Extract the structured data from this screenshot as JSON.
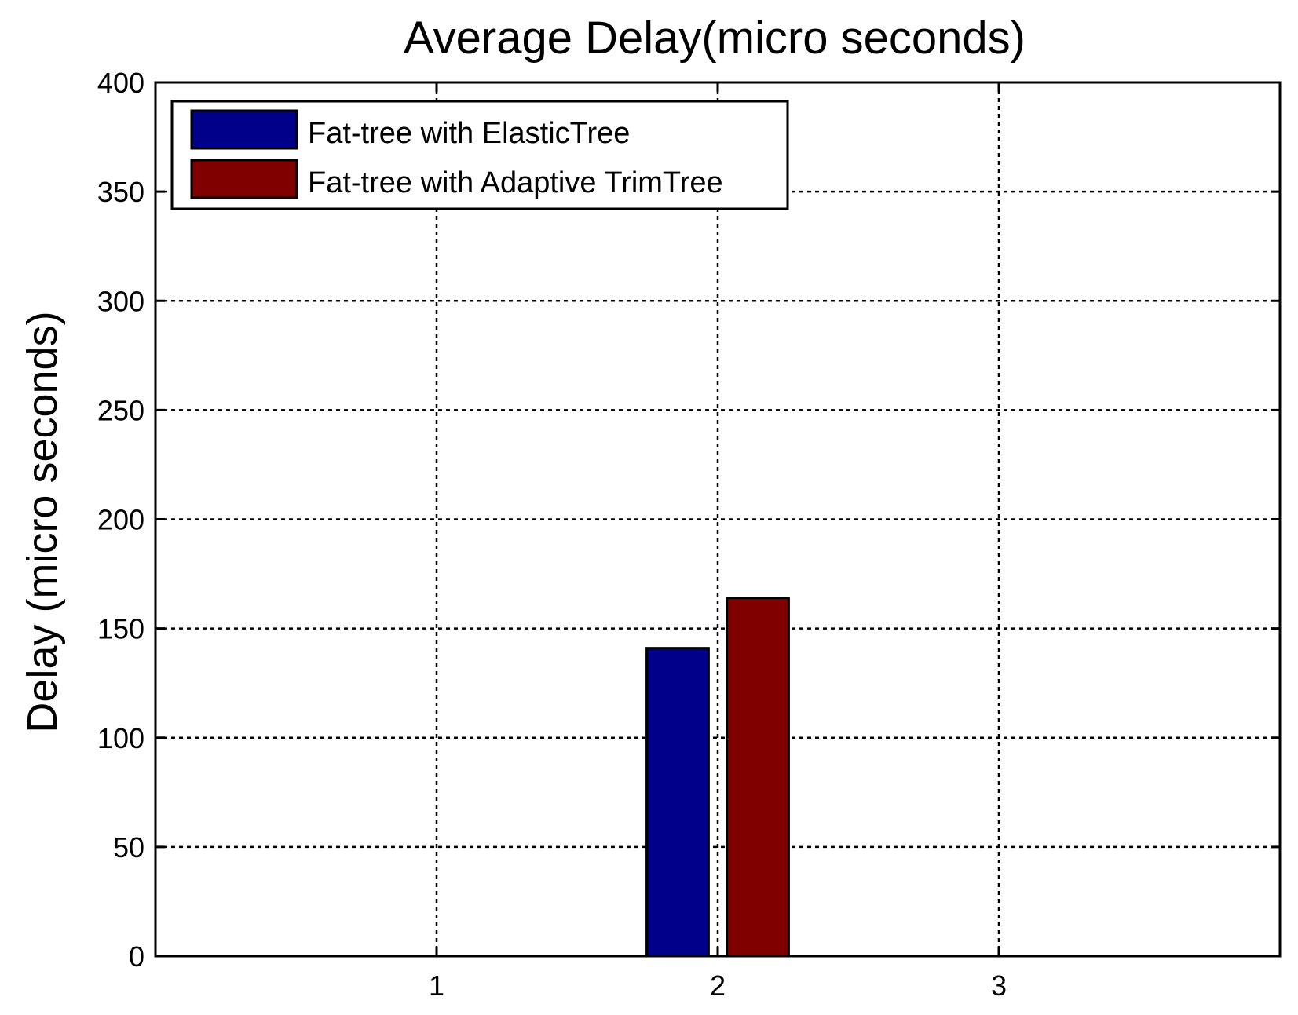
{
  "chart_data": {
    "type": "bar",
    "title": "Average Delay(micro seconds)",
    "xlabel": "",
    "ylabel": "Delay (micro seconds)",
    "categories": [
      "1",
      "2",
      "3"
    ],
    "x_ticks": [
      "1",
      "2",
      "3"
    ],
    "y_ticks": [
      "0",
      "50",
      "100",
      "150",
      "200",
      "250",
      "300",
      "350",
      "400"
    ],
    "xlim": [
      0,
      4
    ],
    "ylim": [
      0,
      400
    ],
    "grid": true,
    "legend_position": "top-left",
    "series": [
      {
        "name": "Fat-tree with ElasticTree",
        "color": "#00008b",
        "values": [
          0,
          141,
          0
        ]
      },
      {
        "name": "Fat-tree with Adaptive TrimTree",
        "color": "#800000",
        "values": [
          0,
          164,
          0
        ]
      }
    ]
  }
}
